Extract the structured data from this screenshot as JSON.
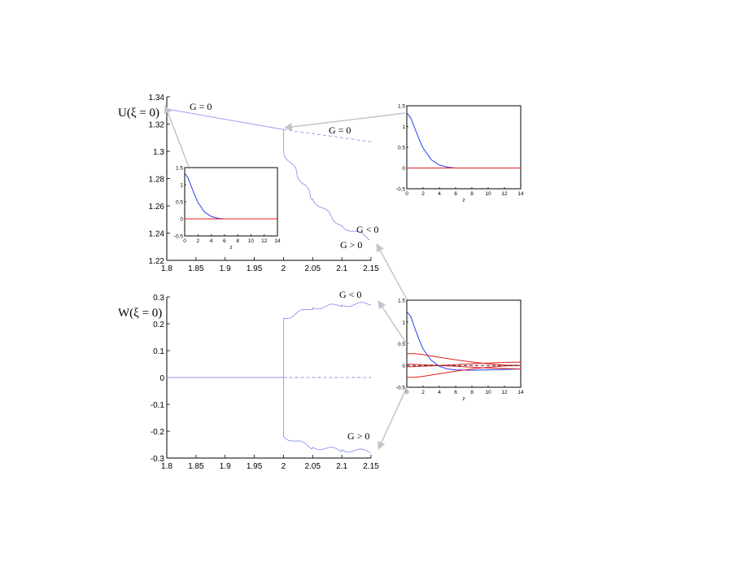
{
  "chart_data": [
    {
      "type": "line",
      "id": "top",
      "ylabel": "U(ξ = 0)",
      "xlim": [
        1.8,
        2.15
      ],
      "ylim": [
        1.22,
        1.34
      ],
      "xticks": [
        "1.8",
        "1.85",
        "1.9",
        "1.95",
        "2",
        "2.05",
        "2.1",
        "2.15"
      ],
      "yticks": [
        "1.22",
        "1.24",
        "1.26",
        "1.28",
        "1.3",
        "1.32",
        "1.34"
      ],
      "series": [
        {
          "style": "solid",
          "color": "#8f96ee",
          "x": [
            1.8,
            2.0
          ],
          "y": [
            1.331,
            1.316
          ]
        },
        {
          "style": "dashed",
          "color": "#8f96ee",
          "x": [
            2.0,
            2.15
          ],
          "y": [
            1.316,
            1.307
          ]
        },
        {
          "style": "wavy",
          "color": "#8f96ee",
          "x": [
            2.0,
            2.0,
            2.05,
            2.1,
            2.15
          ],
          "y": [
            1.316,
            1.3,
            1.265,
            1.245,
            1.236
          ]
        }
      ],
      "annotations": [
        {
          "text": "G = 0"
        },
        {
          "text": "G = 0"
        },
        {
          "text": "G < 0"
        },
        {
          "text": "G > 0"
        }
      ]
    },
    {
      "type": "line",
      "id": "bottom",
      "ylabel": "W(ξ = 0)",
      "xlim": [
        1.8,
        2.15
      ],
      "ylim": [
        -0.3,
        0.3
      ],
      "xticks": [
        "1.8",
        "1.85",
        "1.9",
        "1.95",
        "2",
        "2.05",
        "2.1",
        "2.15"
      ],
      "yticks": [
        "-0.3",
        "-0.2",
        "-0.1",
        "0",
        "0.1",
        "0.2",
        "0.3"
      ],
      "series": [
        {
          "style": "solid",
          "color": "#8f96ee",
          "x": [
            1.8,
            2.0
          ],
          "y": [
            0,
            0
          ]
        },
        {
          "style": "dashed",
          "color": "#8f96ee",
          "x": [
            2.0,
            2.15
          ],
          "y": [
            0,
            0
          ]
        },
        {
          "style": "wavy",
          "color": "#8f96ee",
          "x": [
            2.0,
            2.0,
            2.05,
            2.1,
            2.15
          ],
          "y": [
            0,
            0.22,
            0.26,
            0.27,
            0.275
          ]
        },
        {
          "style": "wavy",
          "color": "#8f96ee",
          "x": [
            2.0,
            2.0,
            2.05,
            2.1,
            2.15
          ],
          "y": [
            0,
            -0.22,
            -0.26,
            -0.27,
            -0.275
          ]
        }
      ],
      "annotations": [
        {
          "text": "G < 0"
        },
        {
          "text": "G > 0"
        }
      ]
    },
    {
      "type": "line",
      "id": "inset-a",
      "xlabel": "z",
      "xlim": [
        0,
        14
      ],
      "ylim": [
        -0.5,
        1.5
      ],
      "xticks": [
        "0",
        "2",
        "4",
        "6",
        "8",
        "10",
        "12",
        "14"
      ],
      "yticks": [
        "-0.5",
        "0",
        "0.5",
        "1",
        "1.5"
      ],
      "series": [
        {
          "color": "#2b3ff0",
          "x": [
            0,
            0.5,
            1,
            1.5,
            2,
            3,
            4,
            5,
            6,
            14
          ],
          "y": [
            1.33,
            1.2,
            0.95,
            0.7,
            0.48,
            0.2,
            0.07,
            0.02,
            0.0,
            0.0
          ]
        },
        {
          "color": "#e02020",
          "x": [
            0,
            14
          ],
          "y": [
            0,
            0
          ]
        }
      ]
    },
    {
      "type": "line",
      "id": "inset-b",
      "xlabel": "z",
      "xlim": [
        0,
        14
      ],
      "ylim": [
        -0.5,
        1.5
      ],
      "xticks": [
        "0",
        "2",
        "4",
        "6",
        "8",
        "10",
        "12",
        "14"
      ],
      "yticks": [
        "-0.5",
        "0",
        "0.5",
        "1",
        "1.5"
      ],
      "series": [
        {
          "color": "#2b3ff0",
          "x": [
            0,
            0.5,
            1,
            1.5,
            2,
            3,
            4,
            5,
            6,
            14
          ],
          "y": [
            1.33,
            1.2,
            0.95,
            0.7,
            0.48,
            0.2,
            0.07,
            0.02,
            0.0,
            0.0
          ]
        },
        {
          "color": "#e02020",
          "x": [
            0,
            14
          ],
          "y": [
            0,
            0
          ]
        }
      ]
    },
    {
      "type": "line",
      "id": "inset-c",
      "xlabel": "z",
      "xlim": [
        0,
        14
      ],
      "ylim": [
        -0.5,
        1.5
      ],
      "xticks": [
        "0",
        "2",
        "4",
        "6",
        "8",
        "10",
        "12",
        "14"
      ],
      "yticks": [
        "-0.5",
        "0",
        "0.5",
        "1",
        "1.5"
      ],
      "series": [
        {
          "color": "#2b3ff0",
          "x": [
            0,
            0.5,
            1,
            1.5,
            2,
            3,
            4,
            5,
            6,
            8,
            10,
            12,
            14
          ],
          "y": [
            1.24,
            1.12,
            0.85,
            0.6,
            0.38,
            0.12,
            -0.02,
            -0.08,
            -0.1,
            -0.11,
            -0.1,
            -0.09,
            -0.08
          ]
        },
        {
          "color": "#e02020",
          "x": [
            0,
            1,
            2,
            4,
            6,
            8,
            10,
            12,
            14
          ],
          "y": [
            0.27,
            0.27,
            0.25,
            0.19,
            0.13,
            0.08,
            0.04,
            0.01,
            0.0
          ]
        },
        {
          "color": "#e02020",
          "x": [
            0,
            1,
            2,
            4,
            6,
            8,
            10,
            12,
            14
          ],
          "y": [
            -0.27,
            -0.27,
            -0.25,
            -0.19,
            -0.13,
            -0.08,
            -0.04,
            -0.01,
            0.0
          ]
        },
        {
          "color": "#e02020",
          "x": [
            0,
            3,
            6,
            9,
            12,
            14
          ],
          "y": [
            -0.03,
            -0.01,
            0.02,
            0.05,
            0.07,
            0.08
          ]
        },
        {
          "color": "#e02020",
          "x": [
            0,
            3,
            6,
            9,
            12,
            14
          ],
          "y": [
            0.03,
            0.01,
            -0.02,
            -0.05,
            -0.07,
            -0.08
          ]
        },
        {
          "color": "#333333",
          "style": "dashed",
          "x": [
            0,
            14
          ],
          "y": [
            0,
            0
          ]
        }
      ]
    }
  ],
  "labels": {
    "u_axis": "U(ξ = 0)",
    "w_axis": "W(ξ = 0)",
    "top_g0_a": "G = 0",
    "top_g0_b": "G = 0",
    "top_gneg": "G < 0",
    "top_gpos": "G > 0",
    "bot_gneg": "G < 0",
    "bot_gpos": "G > 0",
    "inset_a_xlabel": "z",
    "inset_b_xlabel": "z",
    "inset_c_xlabel": "z"
  }
}
